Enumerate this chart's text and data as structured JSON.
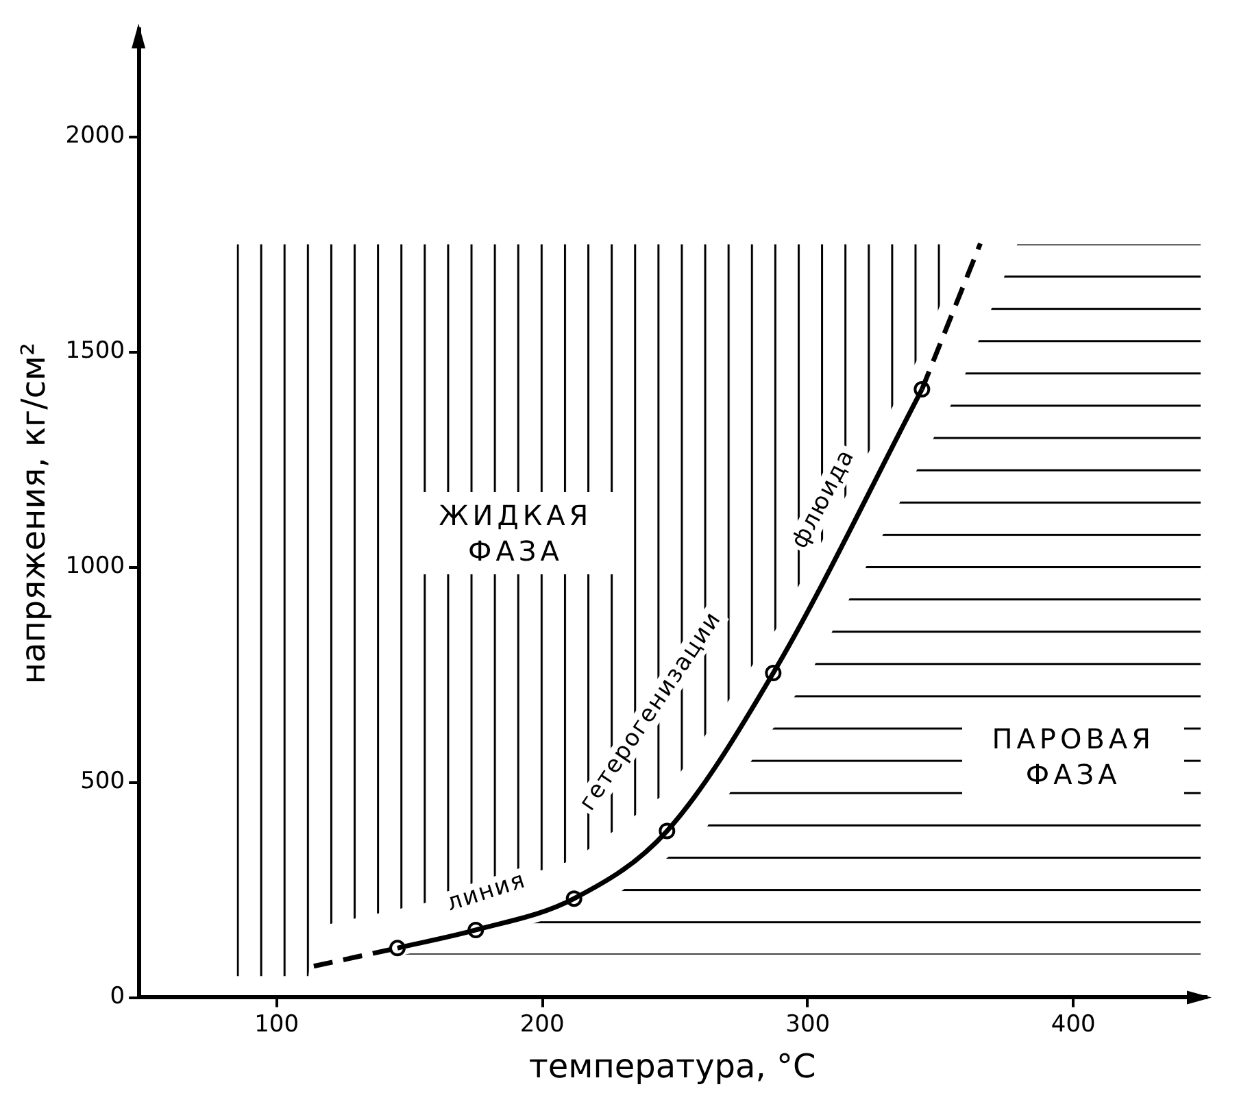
{
  "chart_data": {
    "type": "line",
    "xlabel": "температура, °С",
    "ylabel": "напряжения, кг/см²",
    "xlim": [
      48,
      450
    ],
    "ylim": [
      0,
      2250
    ],
    "xticks": [
      100,
      200,
      300,
      400
    ],
    "yticks": [
      0,
      500,
      1000,
      1500,
      2000
    ],
    "grid": false,
    "legend": false,
    "series": [
      {
        "line_style": "dashed",
        "marker": "none",
        "color": "#000000",
        "x": [
          114,
          145.5
        ],
        "values": [
          73,
          115
        ]
      },
      {
        "line_style": "solid",
        "marker": "none",
        "color": "#000000",
        "x": [
          145.5,
          175,
          212,
          247,
          287,
          343
        ],
        "values": [
          115,
          157,
          230,
          387,
          754,
          1413
        ]
      },
      {
        "line_style": "dashed",
        "marker": "none",
        "color": "#000000",
        "x": [
          343,
          365
        ],
        "values": [
          1413,
          1752
        ]
      },
      {
        "type": "scatter",
        "marker": "circle",
        "color": "#000000",
        "x": [
          145.5,
          175,
          212,
          247,
          287,
          343
        ],
        "values": [
          115,
          157,
          230,
          387,
          754,
          1413
        ]
      }
    ],
    "annotations": [
      "ЖИДКАЯ ФАЗА",
      "ПАРОВАЯ ФАЗА",
      "линия",
      "гетерогенизации",
      "флюида"
    ]
  }
}
